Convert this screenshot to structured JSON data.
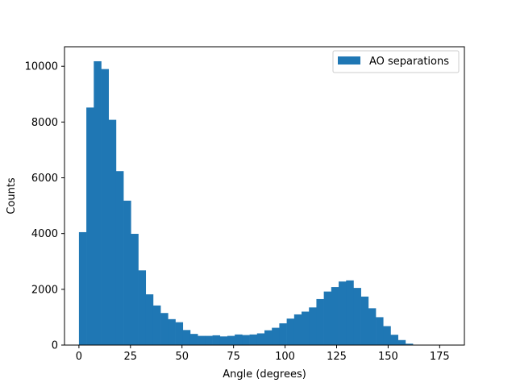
{
  "chart_data": {
    "type": "bar",
    "subtype": "histogram",
    "xlabel": "Angle (degrees)",
    "ylabel": "Counts",
    "xlim": [
      -7,
      187
    ],
    "ylim": [
      0,
      10700
    ],
    "xticks": [
      0,
      25,
      50,
      75,
      100,
      125,
      150,
      175
    ],
    "yticks": [
      0,
      2000,
      4000,
      6000,
      8000,
      10000
    ],
    "bin_start": 0,
    "bin_width": 3.6,
    "series": [
      {
        "name": "AO separations",
        "color": "#1f77b4",
        "values": [
          4050,
          8520,
          10180,
          9900,
          8080,
          6240,
          5180,
          3990,
          2680,
          1820,
          1420,
          1150,
          930,
          820,
          540,
          400,
          330,
          330,
          350,
          310,
          330,
          380,
          360,
          380,
          420,
          530,
          620,
          780,
          950,
          1100,
          1200,
          1350,
          1650,
          1920,
          2080,
          2280,
          2320,
          2050,
          1740,
          1320,
          1000,
          680,
          370,
          180,
          50
        ]
      }
    ],
    "legend": {
      "position": "top-right"
    },
    "grid": false
  }
}
